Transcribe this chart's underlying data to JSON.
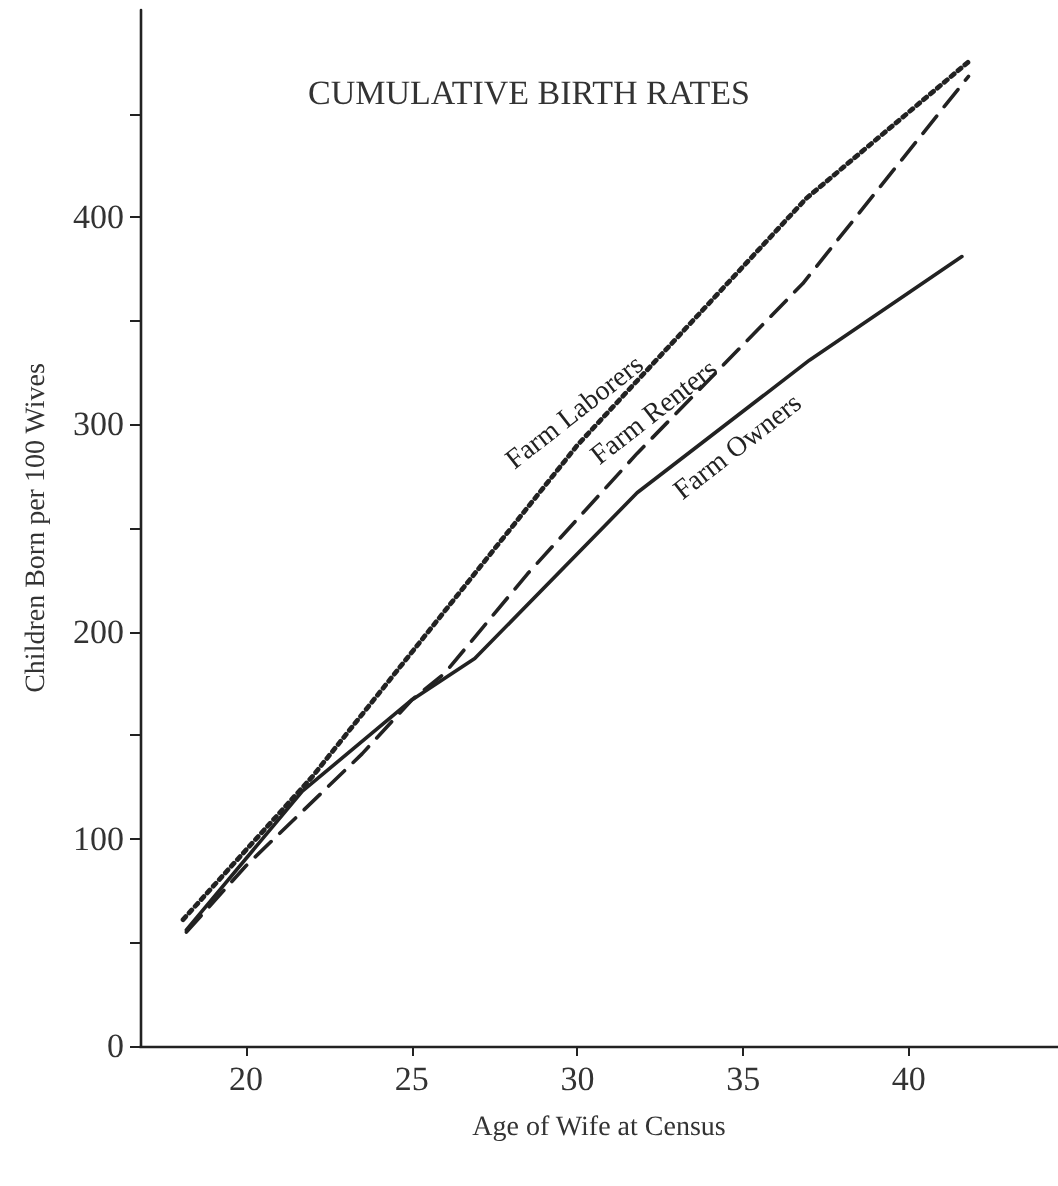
{
  "chart_data": {
    "type": "line",
    "title": "CUMULATIVE BIRTH RATES",
    "xlabel": "Age of Wife at Census",
    "ylabel": "Children Born per 100 Wives",
    "xlim": [
      16.8,
      44.5
    ],
    "xticks": [
      20,
      25,
      30,
      35,
      40
    ],
    "ylim": [
      0,
      500
    ],
    "yticks": [
      0,
      {
        "value": 50,
        "label": null
      },
      100,
      {
        "value": 150,
        "label": null
      },
      200,
      {
        "value": 250,
        "label": null
      },
      300,
      {
        "value": 350,
        "label": null
      },
      400,
      {
        "value": 450,
        "label": null
      }
    ],
    "grid": false,
    "legend": false,
    "marker": "none",
    "series": [
      {
        "name": "Farm Laborers",
        "color": "#222222",
        "line_style": "dotted",
        "x": [
          18.1,
          22,
          30,
          36.9,
          41.8
        ],
        "values": [
          61,
          130,
          290,
          409,
          475
        ]
      },
      {
        "name": "Farm Renters",
        "color": "#222222",
        "line_style": "dashed",
        "x": [
          18.2,
          20,
          23.5,
          25,
          26,
          28.5,
          31.8,
          36.8,
          41.8
        ],
        "values": [
          55,
          87,
          141,
          167,
          180,
          228,
          286,
          368,
          468
        ]
      },
      {
        "name": "Farm Owners",
        "color": "#222222",
        "line_style": "solid",
        "x": [
          18.2,
          21.7,
          25,
          26.9,
          31.8,
          37,
          41.6
        ],
        "values": [
          56,
          123,
          167,
          187,
          267,
          331,
          381
        ]
      }
    ]
  }
}
